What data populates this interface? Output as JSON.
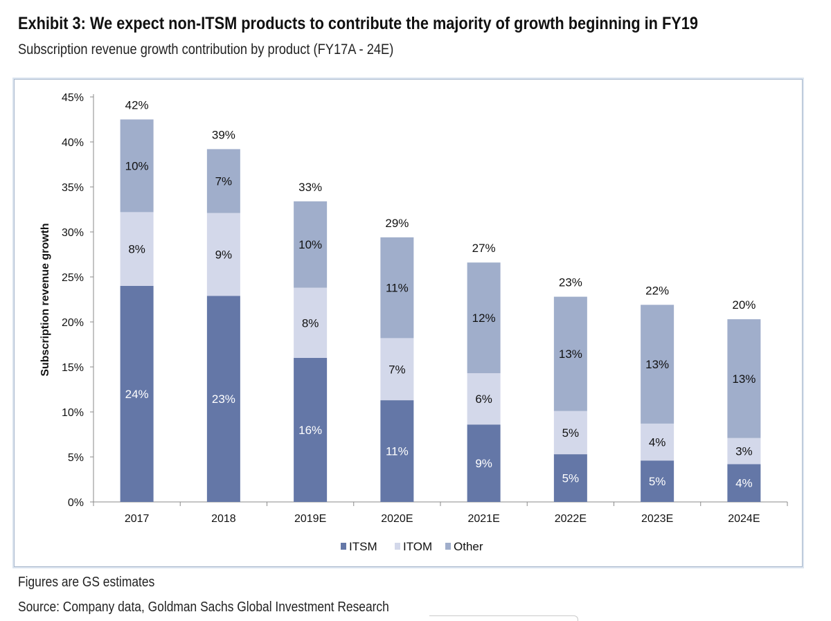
{
  "header": {
    "title": "Exhibit 3: We expect non-ITSM products to contribute the majority of growth beginning in FY19",
    "subtitle": "Subscription revenue growth contribution by product (FY17A - 24E)"
  },
  "footer": {
    "note": "Figures are GS estimates",
    "source": "Source: Company data, Goldman Sachs Global Investment Research"
  },
  "chart_data": {
    "type": "bar",
    "stacked": true,
    "ylabel": "Subscription revenue growth",
    "xlabel": "",
    "ylim": [
      0,
      45
    ],
    "y_tick_labels": [
      "0%",
      "5%",
      "10%",
      "15%",
      "20%",
      "25%",
      "30%",
      "35%",
      "40%",
      "45%"
    ],
    "categories": [
      "2017",
      "2018",
      "2019E",
      "2020E",
      "2021E",
      "2022E",
      "2023E",
      "2024E"
    ],
    "series": [
      {
        "name": "ITSM",
        "color": "#6477a7",
        "label_color": "#ffffff",
        "values": [
          24.0,
          22.9,
          16.0,
          11.3,
          8.6,
          5.3,
          4.6,
          4.2
        ],
        "labels": [
          "24%",
          "23%",
          "16%",
          "11%",
          "9%",
          "5%",
          "5%",
          "4%"
        ]
      },
      {
        "name": "ITOM",
        "color": "#d3d8ea",
        "label_color": "#111111",
        "values": [
          8.2,
          9.2,
          7.8,
          6.9,
          5.7,
          4.8,
          4.1,
          2.9
        ],
        "labels": [
          "8%",
          "9%",
          "8%",
          "7%",
          "6%",
          "5%",
          "4%",
          "3%"
        ]
      },
      {
        "name": "Other",
        "color": "#a0aecb",
        "label_color": "#111111",
        "values": [
          10.3,
          7.1,
          9.6,
          11.2,
          12.3,
          12.7,
          13.2,
          13.2
        ],
        "labels": [
          "10%",
          "7%",
          "10%",
          "11%",
          "12%",
          "13%",
          "13%",
          "13%"
        ]
      }
    ],
    "totals": [
      42.5,
      39.2,
      33.4,
      29.4,
      26.6,
      22.8,
      21.9,
      20.3
    ],
    "total_labels": [
      "42%",
      "39%",
      "33%",
      "29%",
      "27%",
      "23%",
      "22%",
      "20%"
    ],
    "legend": [
      "ITSM",
      "ITOM",
      "Other"
    ],
    "legend_position": "bottom",
    "grid": false
  }
}
